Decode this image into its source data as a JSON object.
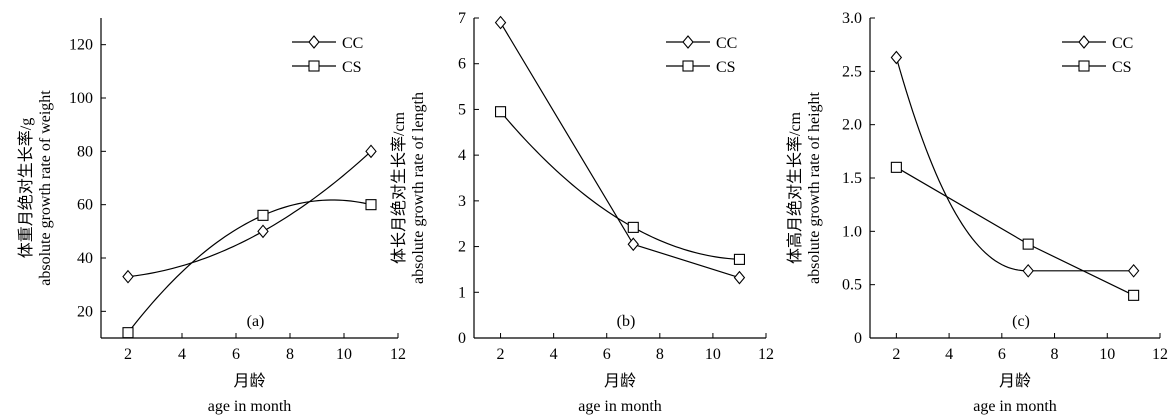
{
  "chart_data": [
    {
      "type": "line",
      "panel_label": "(a)",
      "xlabel_cn": "月龄",
      "xlabel_en": "age in month",
      "ylabel_cn": "体重月绝对生长率/g",
      "ylabel_en": "absolute growth rate of weight",
      "xlim": [
        1,
        12
      ],
      "ylim": [
        10,
        130
      ],
      "xticks": [
        2,
        4,
        6,
        8,
        10,
        12
      ],
      "yticks": [
        20,
        40,
        60,
        80,
        100,
        120
      ],
      "x": [
        2,
        7,
        11
      ],
      "series": [
        {
          "name": "CC",
          "marker": "diamond",
          "values": [
            33,
            50,
            80
          ]
        },
        {
          "name": "CS",
          "marker": "square",
          "values": [
            12,
            56,
            60
          ]
        }
      ],
      "legend": "top-right"
    },
    {
      "type": "line",
      "panel_label": "(b)",
      "xlabel_cn": "月龄",
      "xlabel_en": "age in month",
      "ylabel_cn": "体长月绝对生长率/cm",
      "ylabel_en": "absolute growth rate of length",
      "xlim": [
        1,
        12
      ],
      "ylim": [
        0,
        7
      ],
      "xticks": [
        2,
        4,
        6,
        8,
        10,
        12
      ],
      "yticks": [
        0,
        1,
        2,
        3,
        4,
        5,
        6,
        7
      ],
      "x": [
        2,
        7,
        11
      ],
      "series": [
        {
          "name": "CC",
          "marker": "diamond",
          "values": [
            6.9,
            2.05,
            1.32
          ]
        },
        {
          "name": "CS",
          "marker": "square",
          "values": [
            4.95,
            2.42,
            1.72
          ]
        }
      ],
      "legend": "top-right"
    },
    {
      "type": "line",
      "panel_label": "(c)",
      "xlabel_cn": "月龄",
      "xlabel_en": "age in month",
      "ylabel_cn": "体高月绝对生长率/cm",
      "ylabel_en": "absolute growth rate of height",
      "xlim": [
        1,
        12
      ],
      "ylim": [
        0,
        3.0
      ],
      "xticks": [
        2,
        4,
        6,
        8,
        10,
        12
      ],
      "yticks": [
        "0",
        "0.5",
        "1.0",
        "1.5",
        "2.0",
        "2.5",
        "3.0"
      ],
      "x": [
        2,
        7,
        11
      ],
      "series": [
        {
          "name": "CC",
          "marker": "diamond",
          "values": [
            2.63,
            0.63,
            0.63
          ]
        },
        {
          "name": "CS",
          "marker": "square",
          "values": [
            1.6,
            0.88,
            0.4
          ]
        }
      ],
      "legend": "top-right"
    }
  ]
}
